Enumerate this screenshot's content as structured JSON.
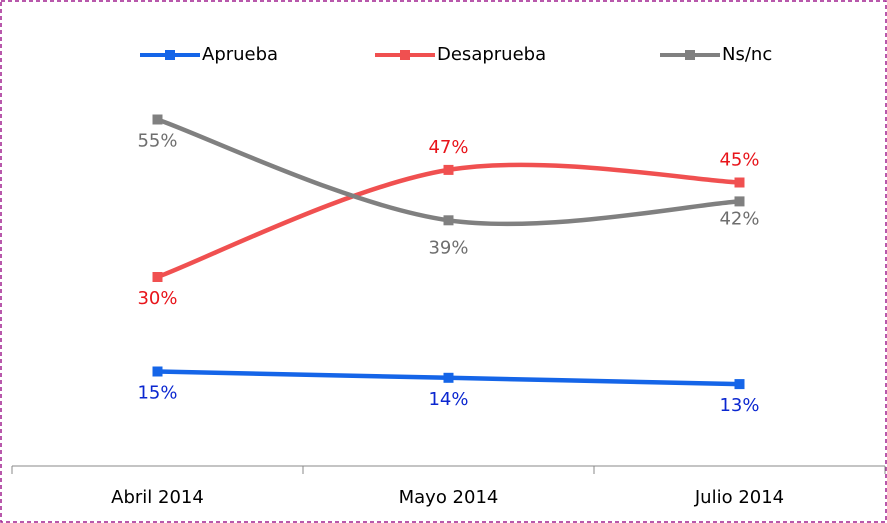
{
  "chart_data": {
    "type": "line",
    "categories": [
      "Abril 2014",
      "Mayo 2014",
      "Julio 2014"
    ],
    "series": [
      {
        "name": "Aprueba",
        "color": "#1565e8",
        "label_color": "#0b27d0",
        "values": [
          15,
          14,
          13
        ],
        "value_labels": [
          "15%",
          "14%",
          "13%"
        ]
      },
      {
        "name": "Desaprueba",
        "color": "#f05050",
        "label_color": "#e8141a",
        "values": [
          30,
          47,
          45
        ],
        "value_labels": [
          "30%",
          "47%",
          "45%"
        ]
      },
      {
        "name": "Ns/nc",
        "color": "#808080",
        "label_color": "#6e6e6e",
        "values": [
          55,
          39,
          42
        ],
        "value_labels": [
          "55%",
          "39%",
          "42%"
        ]
      }
    ],
    "ylim": [
      0,
      70
    ],
    "smooth": true,
    "legend": "top"
  }
}
